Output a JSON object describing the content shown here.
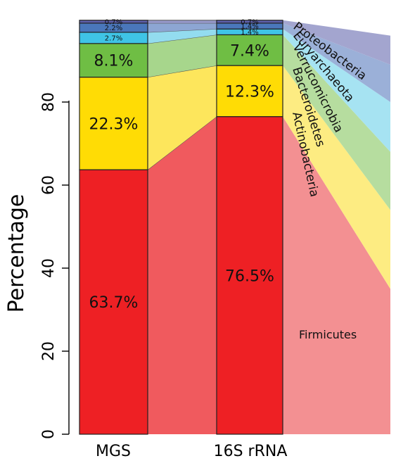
{
  "chart_data": {
    "type": "bar",
    "stacked": true,
    "ylabel": "Percentage",
    "xlabel": "",
    "ylim": [
      0,
      100
    ],
    "yticks": [
      0,
      20,
      40,
      60,
      80
    ],
    "categories": [
      "MGS",
      "16S rRNA"
    ],
    "series": [
      {
        "name": "Firmicutes",
        "values": [
          63.7,
          76.5
        ],
        "labels": [
          "63.7%",
          "76.5%"
        ],
        "color": "#ee2024",
        "ribbon": "#f05a5e",
        "tail_color": "#f39092",
        "tail_end": 35
      },
      {
        "name": "Actinobacteria",
        "values": [
          22.3,
          12.3
        ],
        "labels": [
          "22.3%",
          "12.3%"
        ],
        "color": "#ffdc05",
        "ribbon": "#fde65c",
        "tail_color": "#fdec82",
        "tail_end": 54
      },
      {
        "name": "Bacteroidetes",
        "values": [
          8.1,
          7.4
        ],
        "labels": [
          "8.1%",
          "7.4%"
        ],
        "color": "#6fbe44",
        "ribbon": "#a7d68c",
        "tail_color": "#b6dd9f",
        "tail_end": 68
      },
      {
        "name": "Verrucomicrobia",
        "values": [
          2.7,
          1.4
        ],
        "labels": [
          "2.7%",
          "1.4%"
        ],
        "color": "#3fc4e6",
        "ribbon": "#93dcef",
        "tail_color": "#a6e3f2",
        "tail_end": 80
      },
      {
        "name": "Euryarchaeota",
        "values": [
          2.2,
          1.4
        ],
        "labels": [
          "2.2%",
          "1.4%"
        ],
        "color": "#4a77bb",
        "ribbon": "#8da6d3",
        "tail_color": "#9bb0d8",
        "tail_end": 89
      },
      {
        "name": "Proteobacteria",
        "values": [
          0.7,
          0.7
        ],
        "labels": [
          "0.7%",
          "0.7%"
        ],
        "color": "#5d5fa9",
        "ribbon": "#9597c8",
        "tail_color": "#a3a5cf",
        "tail_end": 96
      }
    ],
    "legend_placement": "right, rotated along ribbons",
    "grid": false
  }
}
